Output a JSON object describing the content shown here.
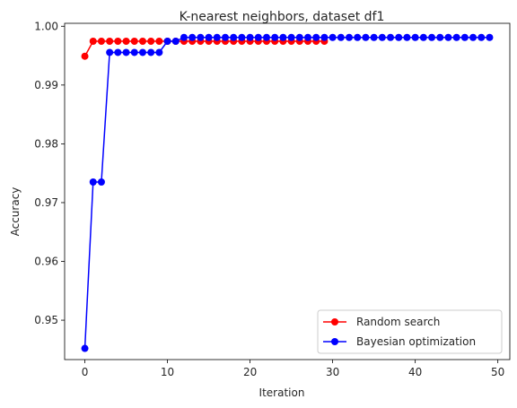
{
  "chart_data": {
    "type": "line",
    "title": "K-nearest neighbors, dataset df1",
    "xlabel": "Iteration",
    "ylabel": "Accuracy",
    "xlim": [
      -2.45,
      51.45
    ],
    "ylim": [
      0.9433,
      1.0005
    ],
    "xticks": [
      0,
      10,
      20,
      30,
      40,
      50
    ],
    "yticks": [
      0.95,
      0.96,
      0.97,
      0.98,
      0.99,
      1.0
    ],
    "ytick_labels": [
      "0.95",
      "0.96",
      "0.97",
      "0.98",
      "0.99",
      "1.00"
    ],
    "grid": false,
    "legend_position": "lower-right",
    "series": [
      {
        "name": "Random search",
        "color": "#ff0000",
        "marker": "circle",
        "x": [
          0,
          1,
          2,
          3,
          4,
          5,
          6,
          7,
          8,
          9,
          10,
          11,
          12,
          13,
          14,
          15,
          16,
          17,
          18,
          19,
          20,
          21,
          22,
          23,
          24,
          25,
          26,
          27,
          28,
          29
        ],
        "y": [
          0.9949,
          0.99745,
          0.99745,
          0.99745,
          0.99745,
          0.99745,
          0.99745,
          0.99745,
          0.99745,
          0.99745,
          0.99745,
          0.99745,
          0.99745,
          0.99745,
          0.99745,
          0.99745,
          0.99745,
          0.99745,
          0.99745,
          0.99745,
          0.99745,
          0.99745,
          0.99745,
          0.99745,
          0.99745,
          0.99745,
          0.99745,
          0.99745,
          0.99745,
          0.99745
        ]
      },
      {
        "name": "Bayesian optimization",
        "color": "#0000ff",
        "marker": "circle",
        "x": [
          0,
          1,
          2,
          3,
          4,
          5,
          6,
          7,
          8,
          9,
          10,
          11,
          12,
          13,
          14,
          15,
          16,
          17,
          18,
          19,
          20,
          21,
          22,
          23,
          24,
          25,
          26,
          27,
          28,
          29,
          30,
          31,
          32,
          33,
          34,
          35,
          36,
          37,
          38,
          39,
          40,
          41,
          42,
          43,
          44,
          45,
          46,
          47,
          48,
          49
        ],
        "y": [
          0.9452,
          0.9735,
          0.9735,
          0.99555,
          0.99555,
          0.99555,
          0.99555,
          0.99555,
          0.99555,
          0.99555,
          0.99745,
          0.99745,
          0.9981,
          0.9981,
          0.9981,
          0.9981,
          0.9981,
          0.9981,
          0.9981,
          0.9981,
          0.9981,
          0.9981,
          0.9981,
          0.9981,
          0.9981,
          0.9981,
          0.9981,
          0.9981,
          0.9981,
          0.9981,
          0.9981,
          0.9981,
          0.9981,
          0.9981,
          0.9981,
          0.9981,
          0.9981,
          0.9981,
          0.9981,
          0.9981,
          0.9981,
          0.9981,
          0.9981,
          0.9981,
          0.9981,
          0.9981,
          0.9981,
          0.9981,
          0.9981,
          0.9981
        ]
      }
    ]
  }
}
